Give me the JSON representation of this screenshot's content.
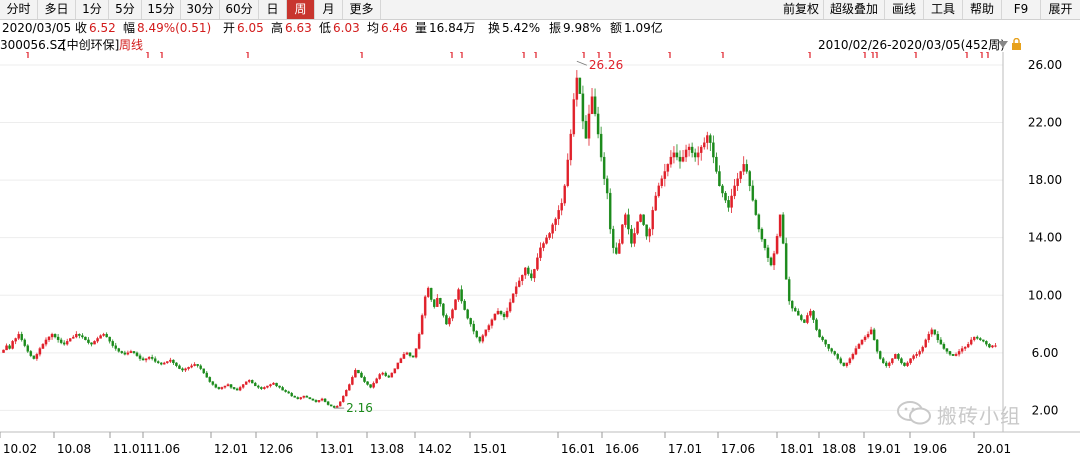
{
  "toolbar": {
    "periods": [
      "分时",
      "多日",
      "1分",
      "5分",
      "15分",
      "30分",
      "60分",
      "日",
      "周",
      "月",
      "更多"
    ],
    "active": "周",
    "right_items": [
      "前复权",
      "超级叠加",
      "画线",
      "工具",
      "帮助",
      "F9",
      "展开"
    ]
  },
  "quote": {
    "date": "2020/03/05",
    "close_label": "收",
    "close": "6.52",
    "range_label": "幅",
    "range": "8.49%(0.51)",
    "open_label": "开",
    "open": "6.05",
    "high_label": "高",
    "high": "6.63",
    "low_label": "低",
    "low": "6.03",
    "avg_label": "均",
    "avg": "6.46",
    "volume_label": "量",
    "volume": "16.84万",
    "turnover_label": "换",
    "turnover": "5.42%",
    "amplitude_label": "振",
    "amplitude": "9.98%",
    "amount_label": "额",
    "amount": "1.09亿"
  },
  "title": {
    "code": "300056.SZ",
    "name": "[中创环保]",
    "period": "周线",
    "range": "2010/02/26-2020/03/05(452周)"
  },
  "watermark": "搬砖小组",
  "colors": {
    "up": "#e0202a",
    "down": "#1b8a1b",
    "active_tab": "#c8352e"
  },
  "chart_data": {
    "type": "candlestick",
    "y_ticks": [
      "26.00",
      "22.00",
      "18.00",
      "14.00",
      "10.00",
      "6.00",
      "2.00"
    ],
    "ylim": [
      0.5,
      26.9
    ],
    "x_tick_labels": [
      "10.02",
      "10.08",
      "11.01",
      "11.06",
      "12.01",
      "12.06",
      "13.01",
      "13.08",
      "14.02",
      "15.01",
      "16.01",
      "16.06",
      "17.01",
      "17.06",
      "18.01",
      "18.08",
      "19.01",
      "19.06",
      "20.01"
    ],
    "annotations": [
      {
        "label": "26.26",
        "value": 26.26,
        "kind": "max"
      },
      {
        "label": "2.16",
        "value": 2.16,
        "kind": "min"
      }
    ],
    "series": [
      {
        "values": [
          6.2,
          6.5,
          6.3,
          6.8,
          7.0,
          7.3,
          6.9,
          6.5,
          6.1,
          5.8,
          5.6,
          5.9,
          6.3,
          6.6,
          6.9,
          7.1,
          7.3,
          7.1,
          6.9,
          6.7,
          6.6,
          6.8,
          7.0,
          7.1,
          7.3,
          7.2,
          7.1,
          6.9,
          6.7,
          6.6,
          6.8,
          7.0,
          7.2,
          7.3,
          7.1,
          6.8,
          6.5,
          6.3,
          6.1,
          6.0,
          5.9,
          6.0,
          6.1,
          6.0,
          5.8,
          5.6,
          5.5,
          5.6,
          5.7,
          5.6,
          5.4,
          5.3,
          5.2,
          5.3,
          5.4,
          5.5,
          5.3,
          5.1,
          4.9,
          4.8,
          4.9,
          5.0,
          5.1,
          5.2,
          5.1,
          4.9,
          4.6,
          4.3,
          4.0,
          3.8,
          3.6,
          3.5,
          3.6,
          3.7,
          3.8,
          3.6,
          3.5,
          3.4,
          3.6,
          3.8,
          4.0,
          4.1,
          3.9,
          3.7,
          3.6,
          3.5,
          3.6,
          3.7,
          3.8,
          3.9,
          3.7,
          3.6,
          3.4,
          3.3,
          3.2,
          3.0,
          2.9,
          2.8,
          2.9,
          3.0,
          2.9,
          2.8,
          2.7,
          2.6,
          2.7,
          2.8,
          2.6,
          2.4,
          2.3,
          2.2,
          2.3,
          2.6,
          3.0,
          3.4,
          3.8,
          4.3,
          4.8,
          4.6,
          4.3,
          4.0,
          3.8,
          3.6,
          3.9,
          4.2,
          4.5,
          4.6,
          4.4,
          4.3,
          4.6,
          4.9,
          5.3,
          5.6,
          5.9,
          6.0,
          5.8,
          5.7,
          6.3,
          7.3,
          8.6,
          9.9,
          10.5,
          9.7,
          9.2,
          9.8,
          9.4,
          8.6,
          8.0,
          8.4,
          9.0,
          9.7,
          10.4,
          9.6,
          9.0,
          8.4,
          8.0,
          7.5,
          7.1,
          6.8,
          7.2,
          7.6,
          7.9,
          8.3,
          8.7,
          8.9,
          8.7,
          8.5,
          8.9,
          9.5,
          10.1,
          10.6,
          11.0,
          11.4,
          11.9,
          11.5,
          11.2,
          11.8,
          12.6,
          13.3,
          13.6,
          14.0,
          14.3,
          14.9,
          15.3,
          15.9,
          16.4,
          17.6,
          19.4,
          21.2,
          23.6,
          25.1,
          24.0,
          22.1,
          20.9,
          22.6,
          23.8,
          22.6,
          21.2,
          19.6,
          18.1,
          17.1,
          14.6,
          13.3,
          12.9,
          13.6,
          14.9,
          15.6,
          14.6,
          13.6,
          14.3,
          15.1,
          15.6,
          14.9,
          14.1,
          14.6,
          15.9,
          16.9,
          17.6,
          18.1,
          18.6,
          19.1,
          19.6,
          19.9,
          19.6,
          19.3,
          19.6,
          20.1,
          20.3,
          19.9,
          19.6,
          19.9,
          20.3,
          20.6,
          21.1,
          20.6,
          19.6,
          18.6,
          17.6,
          17.1,
          16.6,
          16.1,
          16.9,
          17.6,
          18.1,
          18.6,
          19.1,
          18.6,
          17.6,
          16.6,
          15.6,
          14.6,
          13.9,
          13.3,
          12.6,
          12.1,
          12.9,
          14.1,
          15.6,
          13.6,
          11.1,
          9.6,
          9.1,
          8.9,
          8.6,
          8.3,
          8.1,
          8.6,
          8.9,
          8.3,
          7.6,
          7.1,
          6.9,
          6.6,
          6.3,
          6.1,
          5.9,
          5.6,
          5.3,
          5.1,
          5.3,
          5.6,
          5.9,
          6.3,
          6.6,
          6.9,
          7.1,
          7.3,
          7.6,
          6.9,
          6.1,
          5.6,
          5.3,
          5.1,
          5.3,
          5.6,
          5.9,
          5.6,
          5.3,
          5.1,
          5.3,
          5.6,
          5.8,
          5.9,
          6.1,
          6.4,
          6.9,
          7.3,
          7.6,
          7.3,
          6.9,
          6.6,
          6.3,
          6.1,
          5.9,
          5.8,
          5.9,
          6.1,
          6.3,
          6.4,
          6.6,
          6.9,
          7.1,
          7.0,
          6.9,
          6.8,
          6.6,
          6.4,
          6.5,
          6.5
        ]
      }
    ]
  }
}
